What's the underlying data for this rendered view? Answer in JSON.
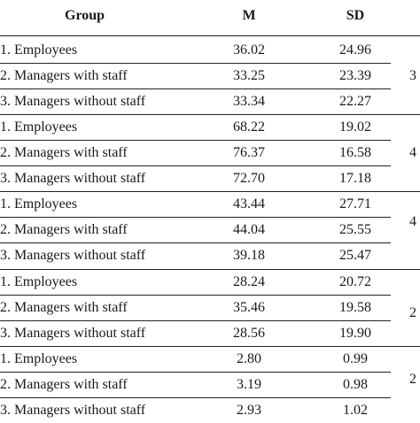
{
  "table": {
    "header": {
      "group": "Group",
      "m": "M",
      "sd": "SD"
    },
    "rows": [
      {
        "group": "1. Employees",
        "m": "36.02",
        "sd": "24.96",
        "extra": ""
      },
      {
        "group": "2. Managers with staff",
        "m": "33.25",
        "sd": "23.39",
        "extra": "3"
      },
      {
        "group": "3. Managers without staff",
        "m": "33.34",
        "sd": "22.27",
        "extra": ""
      },
      {
        "group": "1. Employees",
        "m": "68.22",
        "sd": "19.02",
        "extra": ""
      },
      {
        "group": "2. Managers with staff",
        "m": "76.37",
        "sd": "16.58",
        "extra": "4"
      },
      {
        "group": "3. Managers without staff",
        "m": "72.70",
        "sd": "17.18",
        "extra": ""
      },
      {
        "group": "1. Employees",
        "m": "43.44",
        "sd": "27.71",
        "extra": "4"
      },
      {
        "group": "2. Managers with staff",
        "m": "44.04",
        "sd": "25.55",
        "extra": ""
      },
      {
        "group": "3. Managers without staff",
        "m": "39.18",
        "sd": "25.47",
        "extra": ""
      },
      {
        "group": "1. Employees",
        "m": "28.24",
        "sd": "20.72",
        "extra": ""
      },
      {
        "group": "2. Managers with staff",
        "m": "35.46",
        "sd": "19.58",
        "extra": "2"
      },
      {
        "group": "3. Managers without staff",
        "m": "28.56",
        "sd": "19.90",
        "extra": ""
      },
      {
        "group": "1. Employees",
        "m": "2.80",
        "sd": "0.99",
        "extra": ""
      },
      {
        "group": "2. Managers with staff",
        "m": "3.19",
        "sd": "0.98",
        "extra": "2"
      },
      {
        "group": "3. Managers without staff",
        "m": "2.93",
        "sd": "1.02",
        "extra": ""
      }
    ]
  }
}
